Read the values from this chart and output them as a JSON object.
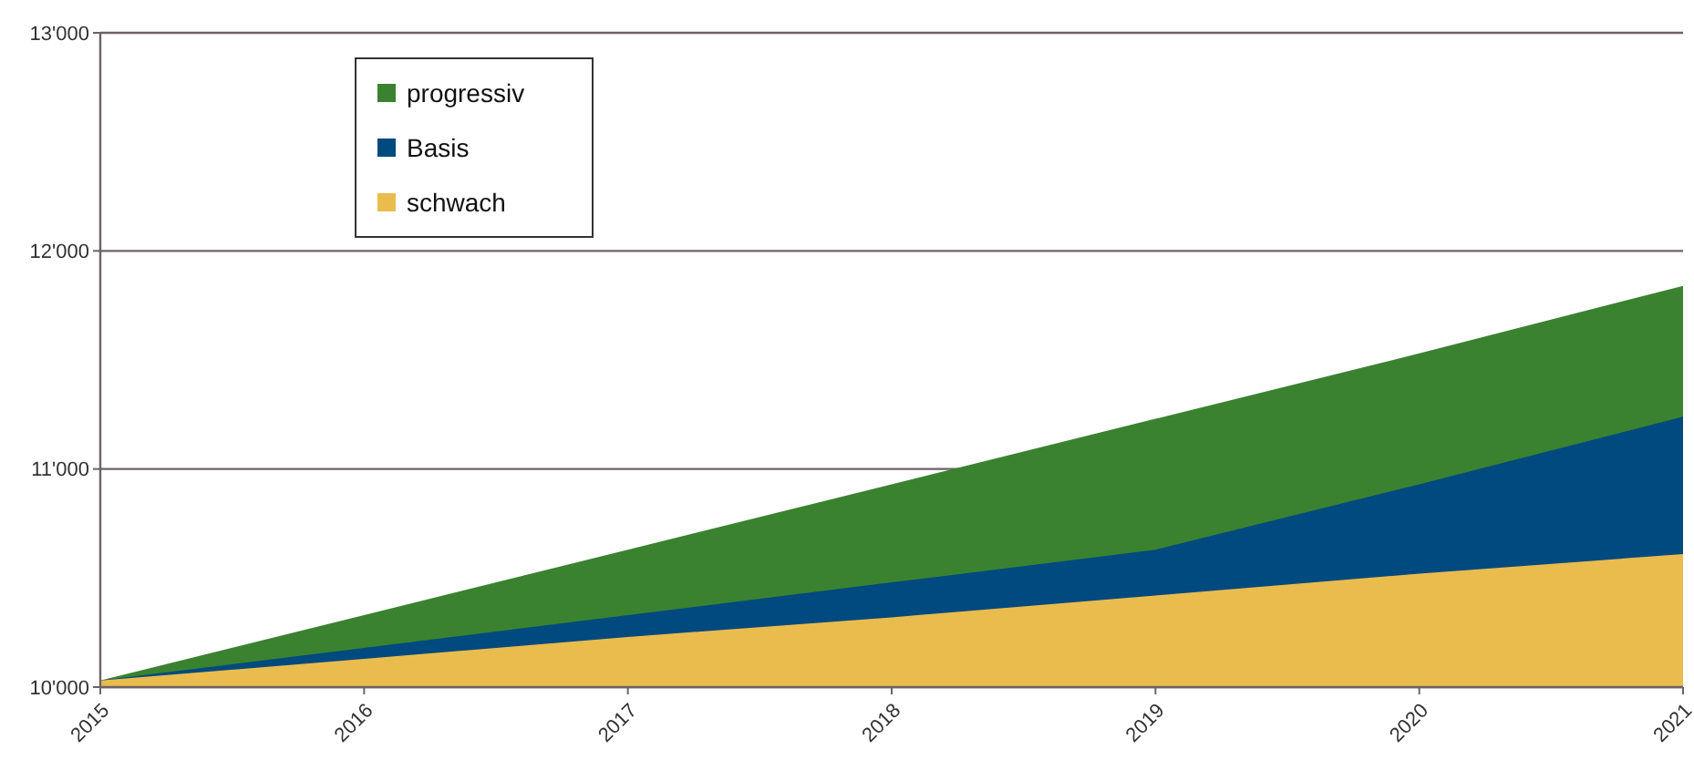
{
  "chart_data": {
    "type": "area",
    "x": [
      2015,
      2016,
      2017,
      2018,
      2019,
      2020,
      2021
    ],
    "series": [
      {
        "name": "progressiv",
        "color": "#3a8230",
        "values": [
          10030,
          10330,
          10630,
          10930,
          11230,
          11530,
          11840
        ]
      },
      {
        "name": "Basis",
        "color": "#004a7f",
        "values": [
          10030,
          10180,
          10330,
          10480,
          10630,
          10930,
          11240
        ]
      },
      {
        "name": "schwach",
        "color": "#e9bc4d",
        "values": [
          10030,
          10130,
          10230,
          10320,
          10420,
          10520,
          10610
        ]
      }
    ],
    "xlim": [
      2015,
      2021
    ],
    "xticks": [
      2015,
      2016,
      2017,
      2018,
      2019,
      2020,
      2021
    ],
    "ylim": [
      10000,
      13000
    ],
    "yticks": [
      {
        "value": 10000,
        "label": "10'000"
      },
      {
        "value": 11000,
        "label": "11'000"
      },
      {
        "value": 12000,
        "label": "12'000"
      },
      {
        "value": 13000,
        "label": "13'000"
      }
    ],
    "grid": "y",
    "legend": "top left"
  }
}
